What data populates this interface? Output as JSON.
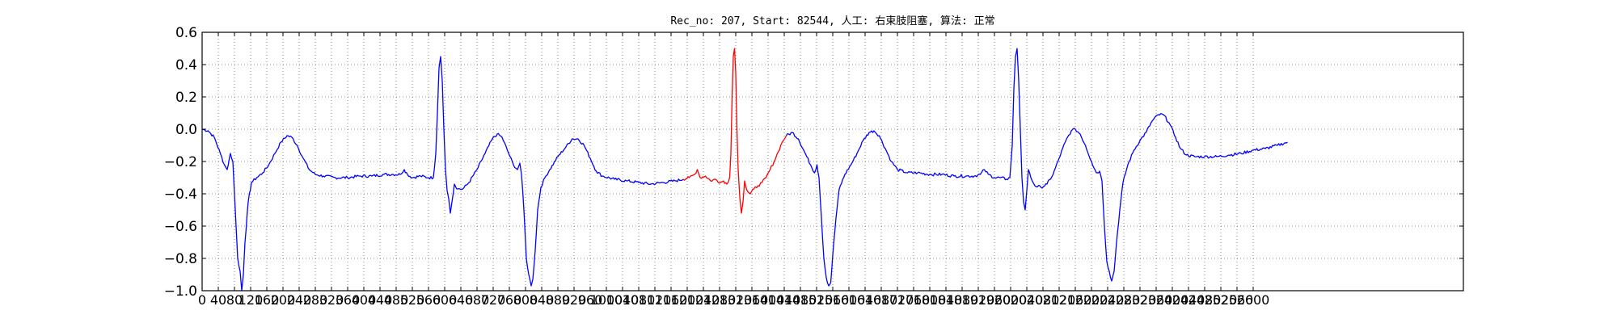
{
  "chart_data": {
    "type": "line",
    "title": "Rec_no: 207, Start: 82544, 人工: 右束肢阻塞, 算法: 正常",
    "xlabel": "",
    "ylabel": "",
    "xlim": [
      0,
      3120
    ],
    "ylim": [
      -1.0,
      0.6
    ],
    "grid": true,
    "legend": "none",
    "x_tick_labels": [
      "0",
      "40",
      "80",
      "120",
      "160",
      "200",
      "240",
      "280",
      "320",
      "360",
      "400",
      "440",
      "480",
      "520",
      "560",
      "600",
      "640",
      "680",
      "720",
      "760",
      "800",
      "840",
      "880",
      "920",
      "960",
      "1000",
      "1040",
      "1080",
      "1120",
      "1160",
      "1200",
      "1240",
      "1280",
      "1320",
      "1360",
      "1400",
      "1440",
      "1480",
      "1520",
      "1560",
      "1600",
      "1640",
      "1680",
      "1720",
      "1760",
      "1800",
      "1840",
      "1880",
      "1920",
      "1960",
      "2000",
      "2040",
      "2080",
      "2120",
      "2160",
      "2200",
      "2240",
      "2280",
      "2320",
      "2360",
      "2400",
      "2440",
      "2480",
      "2520",
      "2560",
      "2600"
    ],
    "y_tick_labels": [
      "0.6",
      "0.4",
      "0.2",
      "0.0",
      "−0.2",
      "−0.4",
      "−0.6",
      "−0.8",
      "−1.0"
    ],
    "series": [
      {
        "color": "#0000ff",
        "points": [
          [
            0,
            0.0
          ],
          [
            15,
            -0.01
          ],
          [
            30,
            -0.05
          ],
          [
            45,
            -0.15
          ],
          [
            55,
            -0.22
          ],
          [
            62,
            -0.25
          ],
          [
            70,
            -0.15
          ],
          [
            76,
            -0.2
          ],
          [
            82,
            -0.5
          ],
          [
            88,
            -0.8
          ],
          [
            94,
            -0.88
          ],
          [
            98,
            -1.0
          ],
          [
            102,
            -0.9
          ],
          [
            106,
            -0.7
          ],
          [
            114,
            -0.45
          ],
          [
            122,
            -0.33
          ],
          [
            135,
            -0.3
          ],
          [
            150,
            -0.27
          ],
          [
            165,
            -0.22
          ],
          [
            180,
            -0.15
          ],
          [
            195,
            -0.08
          ],
          [
            210,
            -0.04
          ],
          [
            222,
            -0.05
          ],
          [
            235,
            -0.1
          ],
          [
            250,
            -0.18
          ],
          [
            265,
            -0.25
          ],
          [
            280,
            -0.28
          ],
          [
            300,
            -0.29
          ],
          [
            330,
            -0.3
          ],
          [
            360,
            -0.3
          ],
          [
            390,
            -0.29
          ],
          [
            420,
            -0.29
          ],
          [
            450,
            -0.28
          ],
          [
            470,
            -0.28
          ],
          [
            490,
            -0.28
          ],
          [
            500,
            -0.25
          ],
          [
            508,
            -0.28
          ],
          [
            520,
            -0.3
          ],
          [
            540,
            -0.29
          ],
          [
            560,
            -0.3
          ],
          [
            572,
            -0.3
          ],
          [
            578,
            -0.15
          ],
          [
            582,
            0.1
          ],
          [
            586,
            0.38
          ],
          [
            590,
            0.45
          ],
          [
            594,
            0.3
          ],
          [
            598,
            0.0
          ],
          [
            602,
            -0.25
          ],
          [
            606,
            -0.38
          ],
          [
            610,
            -0.43
          ],
          [
            614,
            -0.52
          ],
          [
            618,
            -0.45
          ],
          [
            624,
            -0.34
          ],
          [
            632,
            -0.37
          ],
          [
            645,
            -0.37
          ],
          [
            660,
            -0.33
          ],
          [
            680,
            -0.25
          ],
          [
            700,
            -0.15
          ],
          [
            718,
            -0.06
          ],
          [
            730,
            -0.03
          ],
          [
            742,
            -0.05
          ],
          [
            755,
            -0.13
          ],
          [
            770,
            -0.22
          ],
          [
            780,
            -0.25
          ],
          [
            786,
            -0.21
          ],
          [
            790,
            -0.28
          ],
          [
            796,
            -0.5
          ],
          [
            802,
            -0.8
          ],
          [
            808,
            -0.9
          ],
          [
            814,
            -0.97
          ],
          [
            818,
            -0.93
          ],
          [
            824,
            -0.75
          ],
          [
            830,
            -0.5
          ],
          [
            838,
            -0.36
          ],
          [
            848,
            -0.3
          ],
          [
            860,
            -0.25
          ],
          [
            880,
            -0.17
          ],
          [
            900,
            -0.11
          ],
          [
            915,
            -0.06
          ],
          [
            930,
            -0.06
          ],
          [
            945,
            -0.1
          ],
          [
            960,
            -0.18
          ],
          [
            975,
            -0.26
          ],
          [
            990,
            -0.29
          ],
          [
            1020,
            -0.31
          ],
          [
            1050,
            -0.32
          ],
          [
            1080,
            -0.33
          ],
          [
            1110,
            -0.34
          ],
          [
            1140,
            -0.33
          ],
          [
            1170,
            -0.32
          ],
          [
            1190,
            -0.31
          ]
        ]
      },
      {
        "color": "#ff0000",
        "points": [
          [
            1190,
            -0.31
          ],
          [
            1205,
            -0.3
          ],
          [
            1218,
            -0.28
          ],
          [
            1225,
            -0.25
          ],
          [
            1232,
            -0.3
          ],
          [
            1245,
            -0.29
          ],
          [
            1258,
            -0.32
          ],
          [
            1270,
            -0.31
          ],
          [
            1282,
            -0.33
          ],
          [
            1290,
            -0.32
          ],
          [
            1298,
            -0.34
          ],
          [
            1305,
            -0.3
          ],
          [
            1308,
            -0.15
          ],
          [
            1311,
            0.2
          ],
          [
            1314,
            0.45
          ],
          [
            1317,
            0.5
          ],
          [
            1320,
            0.35
          ],
          [
            1323,
            0.0
          ],
          [
            1326,
            -0.25
          ],
          [
            1330,
            -0.42
          ],
          [
            1334,
            -0.52
          ],
          [
            1338,
            -0.45
          ],
          [
            1342,
            -0.32
          ],
          [
            1348,
            -0.38
          ],
          [
            1356,
            -0.4
          ],
          [
            1365,
            -0.37
          ],
          [
            1375,
            -0.35
          ],
          [
            1385,
            -0.33
          ],
          [
            1395,
            -0.3
          ],
          [
            1405,
            -0.25
          ],
          [
            1415,
            -0.2
          ],
          [
            1425,
            -0.14
          ],
          [
            1435,
            -0.08
          ],
          [
            1445,
            -0.04
          ]
        ]
      },
      {
        "color": "#0000ff",
        "points": [
          [
            1445,
            -0.04
          ],
          [
            1460,
            -0.02
          ],
          [
            1475,
            -0.06
          ],
          [
            1490,
            -0.14
          ],
          [
            1505,
            -0.22
          ],
          [
            1515,
            -0.27
          ],
          [
            1521,
            -0.22
          ],
          [
            1526,
            -0.3
          ],
          [
            1532,
            -0.55
          ],
          [
            1538,
            -0.8
          ],
          [
            1544,
            -0.92
          ],
          [
            1550,
            -0.97
          ],
          [
            1555,
            -0.95
          ],
          [
            1560,
            -0.78
          ],
          [
            1568,
            -0.55
          ],
          [
            1576,
            -0.37
          ],
          [
            1590,
            -0.28
          ],
          [
            1605,
            -0.22
          ],
          [
            1620,
            -0.15
          ],
          [
            1635,
            -0.07
          ],
          [
            1650,
            -0.02
          ],
          [
            1662,
            -0.01
          ],
          [
            1675,
            -0.04
          ],
          [
            1690,
            -0.12
          ],
          [
            1705,
            -0.2
          ],
          [
            1720,
            -0.25
          ],
          [
            1745,
            -0.27
          ],
          [
            1770,
            -0.27
          ],
          [
            1800,
            -0.28
          ],
          [
            1830,
            -0.28
          ],
          [
            1860,
            -0.29
          ],
          [
            1890,
            -0.29
          ],
          [
            1910,
            -0.29
          ],
          [
            1925,
            -0.28
          ],
          [
            1935,
            -0.25
          ],
          [
            1945,
            -0.28
          ],
          [
            1960,
            -0.3
          ],
          [
            1975,
            -0.3
          ],
          [
            1990,
            -0.31
          ],
          [
            1998,
            -0.3
          ],
          [
            2004,
            -0.1
          ],
          [
            2008,
            0.25
          ],
          [
            2012,
            0.45
          ],
          [
            2016,
            0.5
          ],
          [
            2020,
            0.3
          ],
          [
            2024,
            0.0
          ],
          [
            2028,
            -0.3
          ],
          [
            2032,
            -0.45
          ],
          [
            2036,
            -0.5
          ],
          [
            2040,
            -0.38
          ],
          [
            2044,
            -0.25
          ],
          [
            2050,
            -0.3
          ],
          [
            2060,
            -0.35
          ],
          [
            2075,
            -0.36
          ],
          [
            2090,
            -0.34
          ],
          [
            2105,
            -0.28
          ],
          [
            2120,
            -0.18
          ],
          [
            2135,
            -0.08
          ],
          [
            2150,
            -0.01
          ],
          [
            2160,
            0.0
          ],
          [
            2172,
            -0.03
          ],
          [
            2185,
            -0.1
          ],
          [
            2200,
            -0.2
          ],
          [
            2212,
            -0.27
          ],
          [
            2220,
            -0.26
          ],
          [
            2226,
            -0.32
          ],
          [
            2232,
            -0.6
          ],
          [
            2238,
            -0.82
          ],
          [
            2244,
            -0.88
          ],
          [
            2250,
            -0.94
          ],
          [
            2256,
            -0.88
          ],
          [
            2262,
            -0.7
          ],
          [
            2270,
            -0.5
          ],
          [
            2278,
            -0.33
          ],
          [
            2290,
            -0.22
          ],
          [
            2305,
            -0.13
          ],
          [
            2320,
            -0.07
          ],
          [
            2335,
            -0.02
          ],
          [
            2350,
            0.05
          ],
          [
            2365,
            0.09
          ],
          [
            2378,
            0.09
          ],
          [
            2392,
            0.04
          ],
          [
            2408,
            -0.05
          ],
          [
            2420,
            -0.12
          ],
          [
            2435,
            -0.16
          ],
          [
            2455,
            -0.17
          ],
          [
            2480,
            -0.17
          ],
          [
            2510,
            -0.17
          ],
          [
            2540,
            -0.16
          ],
          [
            2570,
            -0.15
          ],
          [
            2600,
            -0.13
          ],
          [
            2630,
            -0.12
          ],
          [
            2660,
            -0.1
          ],
          [
            2685,
            -0.08
          ]
        ]
      }
    ]
  }
}
